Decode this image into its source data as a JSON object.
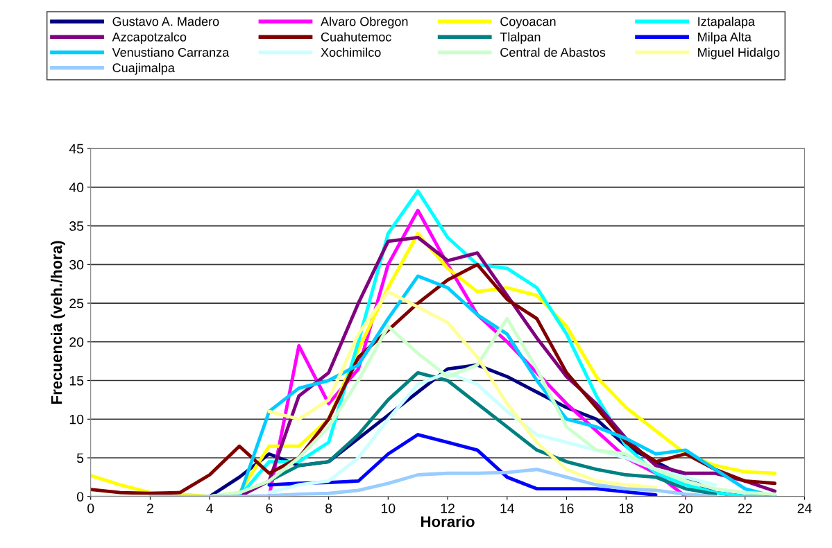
{
  "chart_data": {
    "type": "line",
    "xlabel": "Horario",
    "ylabel": "Frecuencia (veh./hora)",
    "x": [
      0,
      1,
      2,
      3,
      4,
      5,
      6,
      7,
      8,
      9,
      10,
      11,
      12,
      13,
      14,
      15,
      16,
      17,
      18,
      19,
      20,
      21,
      22,
      23
    ],
    "xlim": [
      0,
      24
    ],
    "xticks": [
      0,
      2,
      4,
      6,
      8,
      10,
      12,
      14,
      16,
      18,
      20,
      22,
      24
    ],
    "ylim": [
      0,
      45
    ],
    "yticks": [
      0,
      5,
      10,
      15,
      20,
      25,
      30,
      35,
      40,
      45
    ],
    "grid": "y",
    "legend": "top",
    "marker": "none",
    "line_style": "solid",
    "series": [
      {
        "name": "Gustavo A. Madero",
        "color": "#000080",
        "values": [
          null,
          null,
          null,
          0,
          0,
          2.5,
          5.5,
          4,
          4.5,
          7.5,
          10.5,
          13.5,
          16.5,
          17,
          15.5,
          13.5,
          11.5,
          10,
          6.5,
          4.5,
          2.5,
          0.5,
          0,
          0
        ]
      },
      {
        "name": "Alvaro Obregon",
        "color": "#ff00ff",
        "values": [
          null,
          null,
          null,
          null,
          null,
          null,
          0,
          19.5,
          12,
          16.5,
          30,
          37,
          30,
          23.5,
          20,
          16,
          12,
          8.5,
          5,
          3,
          0,
          null,
          null,
          null
        ]
      },
      {
        "name": "Coyoacan",
        "color": "#ffff00",
        "values": [
          2.7,
          1.5,
          0.5,
          0.3,
          0,
          0.5,
          6.5,
          6.5,
          10,
          19,
          27,
          34,
          29.5,
          26.5,
          27,
          26,
          22,
          15.5,
          11.5,
          8.5,
          5.5,
          4,
          3.2,
          3
        ]
      },
      {
        "name": "Iztapalapa",
        "color": "#00ffff",
        "values": [
          null,
          null,
          null,
          null,
          null,
          0,
          4.5,
          4.5,
          7,
          20,
          34,
          39.5,
          33.5,
          30,
          29.5,
          27,
          21,
          13,
          6.5,
          3,
          1.5,
          0.5,
          0,
          0
        ]
      },
      {
        "name": "Azcapotzalco",
        "color": "#800080",
        "values": [
          null,
          null,
          null,
          null,
          0,
          0,
          2,
          13,
          16,
          25,
          33,
          33.5,
          30.5,
          31.5,
          26,
          20.5,
          15.5,
          12,
          7.5,
          4,
          3,
          3,
          2,
          0.7
        ]
      },
      {
        "name": "Cuahutemoc",
        "color": "#800000",
        "values": [
          0.9,
          0.5,
          0.4,
          0.5,
          2.8,
          6.5,
          3,
          5,
          10,
          18,
          21.5,
          25,
          28,
          30,
          25.5,
          23,
          16,
          11.5,
          7,
          4.5,
          5.5,
          3.5,
          2,
          1.7
        ]
      },
      {
        "name": "Tlalpan",
        "color": "#008080",
        "values": [
          null,
          null,
          null,
          null,
          null,
          null,
          2,
          4,
          4.5,
          8,
          12.5,
          16,
          15,
          12,
          9,
          6,
          4.5,
          3.5,
          2.8,
          2.5,
          1,
          0.3,
          null,
          null
        ]
      },
      {
        "name": "Milpa Alta",
        "color": "#0000ff",
        "values": [
          null,
          null,
          null,
          null,
          null,
          null,
          1.5,
          1.7,
          1.8,
          2,
          5.5,
          8,
          7,
          6,
          2.5,
          1,
          1,
          1,
          0.6,
          0.2,
          null,
          null,
          null,
          null
        ]
      },
      {
        "name": "Venustiano Carranza",
        "color": "#00ccff",
        "values": [
          null,
          null,
          null,
          null,
          null,
          0,
          11,
          14,
          15,
          17,
          23,
          28.5,
          27,
          23.5,
          21,
          15,
          10,
          9,
          7.5,
          5.5,
          6,
          3.5,
          1,
          0
        ]
      },
      {
        "name": "Xochimilco",
        "color": "#ccffff",
        "values": [
          null,
          null,
          null,
          null,
          null,
          null,
          0.5,
          1.5,
          2,
          5,
          10,
          14.5,
          16,
          14.5,
          11,
          8,
          7,
          6,
          5,
          3.5,
          2.5,
          1.5,
          null,
          null
        ]
      },
      {
        "name": "Central de Abastos",
        "color": "#ccffcc",
        "values": [
          0,
          0,
          0,
          0,
          0,
          0.5,
          2,
          5,
          9,
          15,
          22,
          18.5,
          15.5,
          17,
          23,
          16.5,
          9,
          6,
          5.5,
          3.5,
          2,
          1,
          0.5,
          0.3
        ]
      },
      {
        "name": "Miguel Hidalgo",
        "color": "#ffff99",
        "values": [
          null,
          null,
          null,
          null,
          null,
          null,
          11,
          10,
          12.5,
          21,
          26.5,
          24.5,
          22.5,
          18,
          12,
          7,
          3.5,
          2,
          1.5,
          1.2,
          null,
          null,
          null,
          null
        ]
      },
      {
        "name": "Cuajimalpa",
        "color": "#99ccff",
        "values": [
          null,
          null,
          0,
          0,
          0,
          0,
          0.1,
          0.3,
          0.4,
          0.8,
          1.7,
          2.8,
          3,
          3,
          3.1,
          3.5,
          2.5,
          1.5,
          1,
          0.8,
          0.3,
          0,
          null,
          null
        ]
      }
    ]
  }
}
